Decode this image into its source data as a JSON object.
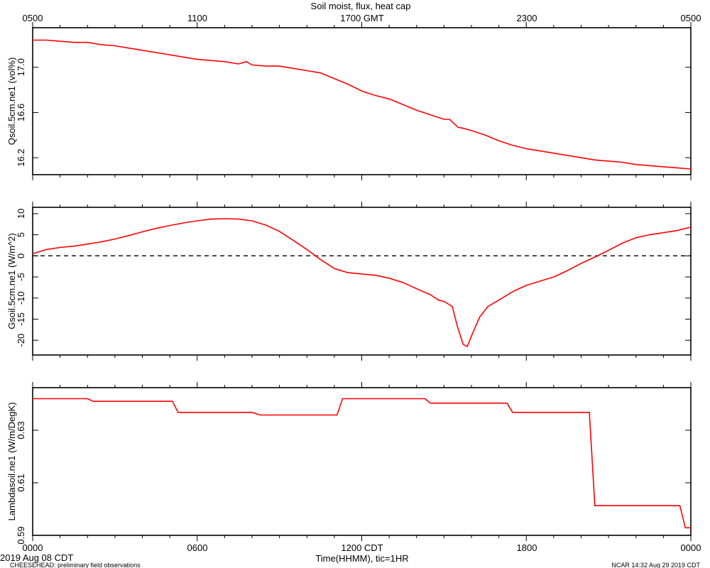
{
  "title": "Soil moist, flux, heat cap",
  "top_axis": {
    "tick_labels": [
      "0500",
      "1100",
      "1700 GMT",
      "2300",
      "0500"
    ]
  },
  "bottom_axis": {
    "tick_labels": [
      "0000",
      "0600",
      "1200 CDT",
      "1800",
      "0000"
    ],
    "label": "Time(HHMM), tic=1HR",
    "date_label": "2019 Aug 08 CDT"
  },
  "footer": {
    "left": "CHEESEHEAD: preliminary field observations",
    "right": "NCAR 14:32 Aug 29 2019 CDT"
  },
  "colors": {
    "series": "#ff0000",
    "axes": "#000000",
    "zero_line": "#000000"
  },
  "chart_data": [
    {
      "type": "line",
      "ylabel": "Qsoil.5cm.ne1 (vol%)",
      "ylim": [
        16.05,
        17.35
      ],
      "yticks": [
        16.2,
        16.6,
        17.0
      ],
      "ytick_labels": [
        "16.2",
        "16.6",
        "17.0"
      ],
      "xlim": [
        0,
        24
      ],
      "series": [
        {
          "x": [
            0,
            0.5,
            1.0,
            1.5,
            2.0,
            2.5,
            3.0,
            3.5,
            4.0,
            4.5,
            5.0,
            5.5,
            6.0,
            6.5,
            7.0,
            7.5,
            7.8,
            8.0,
            8.5,
            9.0,
            9.5,
            10.0,
            10.5,
            11.0,
            11.5,
            12.0,
            12.5,
            13.0,
            13.5,
            14.0,
            14.5,
            15.0,
            15.2,
            15.5,
            15.7,
            16.0,
            16.5,
            17.0,
            17.5,
            18.0,
            18.5,
            19.0,
            19.5,
            20.0,
            20.5,
            21.0,
            21.5,
            22.0,
            22.5,
            23.0,
            23.5,
            24.0
          ],
          "y": [
            17.24,
            17.24,
            17.23,
            17.22,
            17.22,
            17.2,
            17.19,
            17.17,
            17.15,
            17.13,
            17.11,
            17.09,
            17.07,
            17.06,
            17.05,
            17.03,
            17.05,
            17.02,
            17.01,
            17.01,
            16.99,
            16.97,
            16.95,
            16.9,
            16.85,
            16.79,
            16.75,
            16.72,
            16.67,
            16.62,
            16.58,
            16.54,
            16.54,
            16.47,
            16.46,
            16.44,
            16.4,
            16.35,
            16.31,
            16.28,
            16.26,
            16.24,
            16.22,
            16.2,
            16.18,
            16.17,
            16.16,
            16.14,
            16.13,
            16.12,
            16.11,
            16.1
          ]
        }
      ]
    },
    {
      "type": "line",
      "ylabel": "Gsoil.5cm.ne1 (W/m^2)",
      "ylim": [
        -23.5,
        11.5
      ],
      "yticks": [
        -20,
        -15,
        -10,
        -5,
        0,
        5,
        10
      ],
      "ytick_labels": [
        "-20",
        "-15",
        "-10",
        "-5",
        "0",
        "5",
        "10"
      ],
      "reference_line": 0,
      "xlim": [
        0,
        24
      ],
      "series": [
        {
          "x": [
            0,
            0.5,
            1.0,
            1.5,
            2.0,
            2.5,
            3.0,
            3.5,
            4.0,
            4.5,
            5.0,
            5.5,
            6.0,
            6.5,
            7.0,
            7.5,
            8.0,
            8.5,
            9.0,
            9.5,
            10.0,
            10.5,
            11.0,
            11.5,
            12.0,
            12.5,
            13.0,
            13.5,
            14.0,
            14.5,
            14.8,
            15.0,
            15.3,
            15.5,
            15.7,
            15.85,
            16.0,
            16.3,
            16.6,
            17.0,
            17.5,
            18.0,
            18.5,
            19.0,
            19.5,
            20.0,
            20.5,
            21.0,
            21.5,
            22.0,
            22.5,
            23.0,
            23.5,
            24.0
          ],
          "y": [
            0.5,
            1.5,
            2.0,
            2.3,
            2.8,
            3.3,
            4.0,
            4.8,
            5.7,
            6.5,
            7.2,
            7.8,
            8.3,
            8.7,
            8.8,
            8.7,
            8.3,
            7.3,
            5.8,
            3.7,
            1.5,
            -0.9,
            -3.0,
            -4.0,
            -4.3,
            -4.6,
            -5.3,
            -6.3,
            -7.8,
            -9.2,
            -10.5,
            -10.8,
            -12.0,
            -17.0,
            -21.0,
            -21.5,
            -19.0,
            -14.5,
            -12.0,
            -10.5,
            -8.5,
            -7.0,
            -6.0,
            -5.0,
            -3.5,
            -1.8,
            -0.3,
            1.3,
            3.0,
            4.3,
            5.0,
            5.5,
            6.0,
            6.8
          ]
        }
      ]
    },
    {
      "type": "line",
      "ylabel": "Lambdasoil.ne1 (W/m/DegK)",
      "ylim": [
        0.59,
        0.6462
      ],
      "yticks": [
        0.59,
        0.61,
        0.63
      ],
      "ytick_labels": [
        "0.59",
        "0.61",
        "0.63"
      ],
      "xlim": [
        0,
        24
      ],
      "series": [
        {
          "x": [
            0,
            2.0,
            2.2,
            5.1,
            5.3,
            8.0,
            8.3,
            11.1,
            11.3,
            14.3,
            14.5,
            17.3,
            17.5,
            20.3,
            20.5,
            23.6,
            23.8,
            24.0
          ],
          "y": [
            0.642,
            0.642,
            0.641,
            0.641,
            0.6368,
            0.6368,
            0.6358,
            0.6358,
            0.642,
            0.642,
            0.6403,
            0.6403,
            0.6368,
            0.6368,
            0.6013,
            0.6013,
            0.5929,
            0.5929
          ]
        }
      ]
    }
  ]
}
